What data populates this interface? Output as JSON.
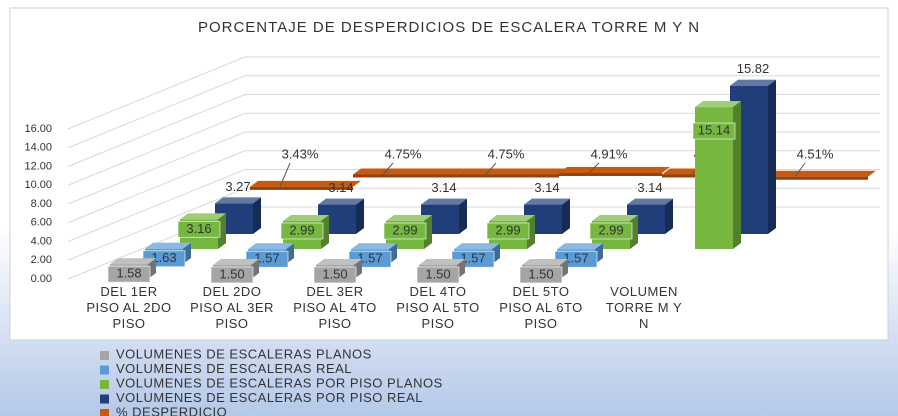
{
  "chart_data": {
    "type": "bar3d",
    "title": "PORCENTAJE DE DESPERDICIOS DE ESCALERA TORRE M Y N",
    "categories": [
      "DEL 1ER PISO AL 2DO PISO",
      "DEL 2DO PISO AL 3ER PISO",
      "DEL 3ER PISO AL 4TO PISO",
      "DEL 4TO PISO AL 5TO PISO",
      "DEL 5TO PISO AL 6TO PISO",
      "VOLUMEN TORRE M Y N"
    ],
    "series": [
      {
        "name": "VOLUMENES DE ESCALERAS PLANOS",
        "color": "#a5a5a5",
        "values": [
          1.58,
          1.5,
          1.5,
          1.5,
          1.5,
          null
        ],
        "value_labels": [
          "1.58",
          "1.50",
          "1.50",
          "1.50",
          "1.50",
          null
        ]
      },
      {
        "name": "VOLUMENES DE ESCALERAS REAL",
        "color": "#5b9bd5",
        "values": [
          1.63,
          1.57,
          1.57,
          1.57,
          1.57,
          null
        ],
        "value_labels": [
          "1.63",
          "1.57",
          "1.57",
          "1.57",
          "1.57",
          null
        ]
      },
      {
        "name": "VOLUMENES DE ESCALERAS POR PISO PLANOS",
        "color": "#76b83f",
        "values": [
          3.16,
          2.99,
          2.99,
          2.99,
          2.99,
          15.14
        ],
        "value_labels": [
          "3.16",
          "2.99",
          "2.99",
          "2.99",
          "2.99",
          "15.14"
        ]
      },
      {
        "name": "VOLUMENES DE ESCALERAS POR PISO REAL",
        "color": "#203f7a",
        "values": [
          3.27,
          3.14,
          3.14,
          3.14,
          3.14,
          15.82
        ],
        "value_labels": [
          "3.27",
          "3.14",
          "3.14",
          "3.14",
          "3.14",
          "15.82"
        ]
      },
      {
        "name": "% DESPERDICIO",
        "color": "#c55a11",
        "values": [
          3.43,
          4.75,
          4.75,
          4.91,
          4.75,
          4.51
        ],
        "value_labels": [
          "3.43%",
          "4.75%",
          "4.75%",
          "4.91%",
          "4.75%",
          "4.51%"
        ]
      }
    ],
    "ylim": [
      0,
      16
    ],
    "yticks": [
      {
        "value": 0,
        "label": "0.00"
      },
      {
        "value": 2,
        "label": "2.00"
      },
      {
        "value": 4,
        "label": "4.00"
      },
      {
        "value": 6,
        "label": "6.00"
      },
      {
        "value": 8,
        "label": "8.00"
      },
      {
        "value": 10,
        "label": "10.00"
      },
      {
        "value": 12,
        "label": "12.00"
      },
      {
        "value": 14,
        "label": "14.00"
      },
      {
        "value": 16,
        "label": "16.00"
      }
    ],
    "grid": true
  }
}
